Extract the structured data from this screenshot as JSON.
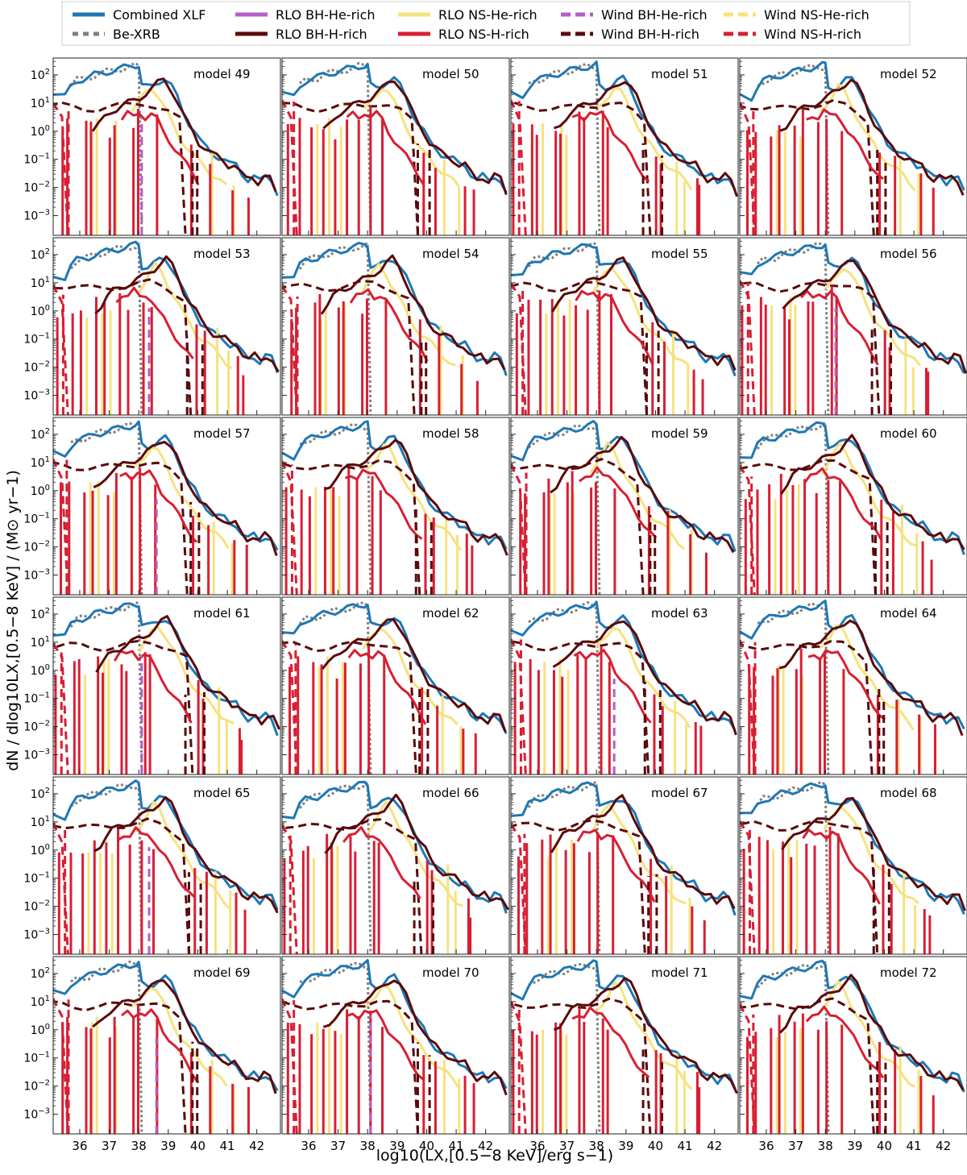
{
  "figure": {
    "ylabel": "dN / dlog10LX,[0.5−8 KeV] / (M⊙ yr−1)",
    "xlabel": "log10(LX,[0.5−8 KeV]/erg s−1)"
  },
  "legend": [
    {
      "label": "Combined XLF",
      "color": "#1f77b4",
      "style": "solid"
    },
    {
      "label": "Be-XRB",
      "color": "#7f7f7f",
      "style": "dotted"
    },
    {
      "label": "RLO BH-He-rich",
      "color": "#b25fc8",
      "style": "solid"
    },
    {
      "label": "RLO BH-H-rich",
      "color": "#5a0a0a",
      "style": "solid"
    },
    {
      "label": "RLO NS-He-rich",
      "color": "#f6e27f",
      "style": "solid"
    },
    {
      "label": "RLO NS-H-rich",
      "color": "#d81f33",
      "style": "solid"
    },
    {
      "label": "Wind BH-He-rich",
      "color": "#b25fc8",
      "style": "dashed"
    },
    {
      "label": "Wind BH-H-rich",
      "color": "#5a0a0a",
      "style": "dashed"
    },
    {
      "label": "Wind NS-He-rich",
      "color": "#f6e27f",
      "style": "dashed"
    },
    {
      "label": "Wind NS-H-rich",
      "color": "#d81f33",
      "style": "dashed"
    }
  ],
  "chart_data": {
    "type": "line",
    "grid": false,
    "layout": "6 rows x 4 columns of panels with shared axes",
    "xlim": [
      35.1,
      42.8
    ],
    "ylim_log10": [
      -3.7,
      2.6
    ],
    "y_scale": "log",
    "x_ticks": [
      36,
      37,
      38,
      39,
      40,
      41,
      42
    ],
    "y_ticks": [
      "10^-3",
      "10^-2",
      "10^-1",
      "10^0",
      "10^1",
      "10^2"
    ],
    "y_tick_labels": [
      {
        "b": "10",
        "e": "−3"
      },
      {
        "b": "10",
        "e": "−2"
      },
      {
        "b": "10",
        "e": "−1"
      },
      {
        "b": "10",
        "e": "0"
      },
      {
        "b": "10",
        "e": "1"
      },
      {
        "b": "10",
        "e": "2"
      }
    ],
    "panels": [
      {
        "title": "model 49",
        "variant": 0
      },
      {
        "title": "model 50",
        "variant": 1
      },
      {
        "title": "model 51",
        "variant": 2
      },
      {
        "title": "model 52",
        "variant": 3
      },
      {
        "title": "model 53",
        "variant": 4
      },
      {
        "title": "model 54",
        "variant": 5
      },
      {
        "title": "model 55",
        "variant": 6
      },
      {
        "title": "model 56",
        "variant": 7
      },
      {
        "title": "model 57",
        "variant": 8
      },
      {
        "title": "model 58",
        "variant": 9
      },
      {
        "title": "model 59",
        "variant": 10
      },
      {
        "title": "model 60",
        "variant": 11
      },
      {
        "title": "model 61",
        "variant": 12
      },
      {
        "title": "model 62",
        "variant": 13
      },
      {
        "title": "model 63",
        "variant": 14
      },
      {
        "title": "model 64",
        "variant": 15
      },
      {
        "title": "model 65",
        "variant": 16
      },
      {
        "title": "model 66",
        "variant": 17
      },
      {
        "title": "model 67",
        "variant": 18
      },
      {
        "title": "model 68",
        "variant": 19
      },
      {
        "title": "model 69",
        "variant": 20
      },
      {
        "title": "model 70",
        "variant": 21
      },
      {
        "title": "model 71",
        "variant": 22
      },
      {
        "title": "model 72",
        "variant": 23
      }
    ],
    "series_templates": {
      "combined": {
        "x": [
          35.1,
          35.5,
          35.7,
          35.9,
          36.1,
          36.3,
          36.5,
          36.7,
          36.9,
          37.1,
          37.3,
          37.5,
          37.7,
          37.9,
          38.0,
          38.1,
          38.3,
          38.5,
          38.7,
          38.9,
          39.1,
          39.3,
          39.5,
          39.7,
          39.9,
          40.1,
          40.3,
          40.5,
          40.7,
          40.9,
          41.1,
          41.3,
          41.5,
          41.7,
          41.9,
          42.1,
          42.3,
          42.5,
          42.7
        ],
        "y": [
          1.3,
          1.2,
          1.6,
          1.8,
          1.85,
          1.9,
          2.0,
          2.05,
          2.1,
          2.15,
          2.2,
          2.25,
          2.3,
          2.35,
          2.35,
          1.6,
          1.55,
          1.65,
          1.8,
          1.85,
          1.6,
          1.2,
          0.7,
          0.3,
          0.0,
          -0.4,
          -0.6,
          -0.8,
          -0.9,
          -1.0,
          -1.2,
          -1.2,
          -1.5,
          -1.7,
          -1.6,
          -1.8,
          -1.6,
          -1.7,
          -2.2
        ]
      },
      "bexrb": {
        "x": [
          35.7,
          35.9,
          36.1,
          36.3,
          36.5,
          36.7,
          36.9,
          37.1,
          37.3,
          37.5,
          37.7,
          37.9,
          38.0,
          38.1
        ],
        "y": [
          1.6,
          1.8,
          1.85,
          1.9,
          2.0,
          2.05,
          2.1,
          2.15,
          2.2,
          2.25,
          2.3,
          2.3,
          2.3,
          -3.7
        ]
      },
      "rlo_bh_h": {
        "x": [
          36.5,
          36.7,
          36.9,
          37.1,
          37.3,
          37.5,
          37.7,
          37.9,
          38.1,
          38.3,
          38.5,
          38.7,
          38.9,
          39.1,
          39.3,
          39.5,
          39.7,
          39.9,
          40.1,
          40.3,
          40.5,
          40.7,
          40.9,
          41.1,
          41.3,
          41.5,
          41.7,
          41.9,
          42.1,
          42.3,
          42.5,
          42.7
        ],
        "y": [
          0.0,
          0.2,
          0.5,
          0.7,
          0.8,
          0.9,
          1.0,
          1.1,
          1.2,
          1.35,
          1.5,
          1.7,
          1.85,
          1.6,
          1.2,
          0.7,
          0.3,
          0.0,
          -0.4,
          -0.6,
          -0.8,
          -0.9,
          -1.0,
          -1.2,
          -1.2,
          -1.5,
          -1.7,
          -1.6,
          -1.8,
          -1.6,
          -1.7,
          -2.2
        ]
      },
      "wind_bh_h": {
        "x": [
          35.1,
          35.5,
          35.9,
          36.3,
          36.7,
          37.1,
          37.5,
          37.9,
          38.3,
          38.7,
          39.1,
          39.5,
          39.7
        ],
        "y": [
          0.9,
          0.9,
          0.85,
          0.8,
          0.8,
          0.85,
          0.9,
          0.95,
          1.0,
          0.9,
          0.7,
          0.4,
          -3.7
        ]
      },
      "rlo_ns_he": {
        "x": [
          37.9,
          38.1,
          38.3,
          38.5,
          38.7,
          38.9,
          39.1,
          39.3,
          39.5,
          39.7,
          39.9,
          40.1,
          40.3,
          40.5,
          40.7,
          40.9,
          41.1
        ],
        "y": [
          0.7,
          1.0,
          1.3,
          1.6,
          1.4,
          1.0,
          0.6,
          0.2,
          -0.2,
          -0.5,
          -0.8,
          -1.0,
          -1.2,
          -1.4,
          -1.6,
          -1.8,
          -2.0
        ]
      },
      "rlo_ns_h": {
        "x": [
          37.3,
          37.5,
          37.7,
          37.9,
          38.1,
          38.3,
          38.5,
          38.7,
          38.9,
          39.1,
          39.3,
          39.5,
          39.7,
          39.9
        ],
        "y": [
          0.4,
          0.6,
          0.5,
          0.7,
          0.5,
          0.6,
          0.4,
          0.0,
          -0.3,
          -0.6,
          -0.9,
          -1.2,
          -1.5,
          -1.8
        ]
      },
      "wind_ns_h": {
        "x": [
          35.1,
          35.4,
          35.6
        ],
        "y": [
          1.0,
          0.4,
          -3.7
        ]
      }
    },
    "spike_templates": {
      "rlo_ns_h_x": [
        35.3,
        35.7,
        36.1,
        36.5,
        36.9,
        37.3,
        37.7,
        38.1,
        38.5,
        39.9,
        40.3,
        41.3,
        41.6
      ],
      "rlo_ns_h_top": [
        0.0,
        0.2,
        0.1,
        0.3,
        0.0,
        0.5,
        0.2,
        0.6,
        0.3,
        -0.6,
        -1.0,
        -1.8,
        -2.2
      ],
      "rlo_ns_he_x": [
        36.3,
        36.7,
        37.1,
        40.6,
        41.1
      ],
      "rlo_ns_he_top": [
        0.0,
        0.2,
        0.1,
        -0.8,
        -1.7
      ],
      "wind_ns_h_x": [
        35.5
      ],
      "wind_ns_h_top": [
        0.8
      ],
      "rlo_bh_h_x": [
        39.7,
        40.1
      ],
      "rlo_bh_h_top": [
        -0.7,
        -0.9
      ]
    }
  }
}
